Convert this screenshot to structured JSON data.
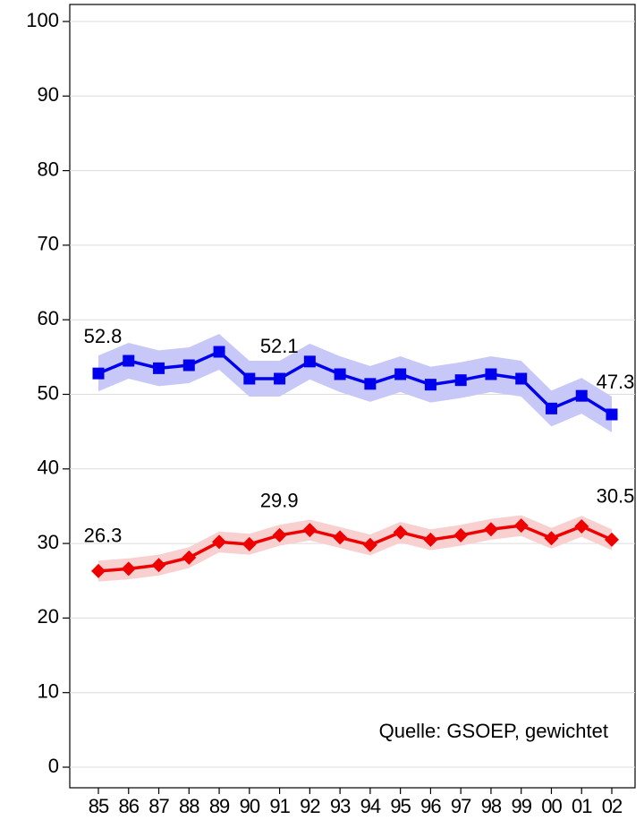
{
  "chart_data": {
    "type": "line",
    "categories": [
      "85",
      "86",
      "87",
      "88",
      "89",
      "90",
      "91",
      "92",
      "93",
      "94",
      "95",
      "96",
      "97",
      "98",
      "99",
      "00",
      "01",
      "02"
    ],
    "ylim": [
      0,
      100
    ],
    "yticks": [
      0,
      10,
      20,
      30,
      40,
      50,
      60,
      70,
      80,
      90,
      100
    ],
    "grid": true,
    "annotation": "Quelle: GSOEP, gewichtet",
    "series": [
      {
        "color": "#0000ee",
        "band_color": "#c8c8f8",
        "marker": "square",
        "values": [
          52.8,
          54.5,
          53.5,
          53.9,
          55.7,
          52.1,
          52.1,
          54.4,
          52.7,
          51.4,
          52.7,
          51.3,
          51.9,
          52.7,
          52.1,
          48.1,
          49.8,
          47.3
        ],
        "ci_lower": [
          50.4,
          52.1,
          51.1,
          51.5,
          53.3,
          49.7,
          49.7,
          52.0,
          50.3,
          49.0,
          50.3,
          48.9,
          49.5,
          50.3,
          49.7,
          45.7,
          47.4,
          44.9
        ],
        "ci_upper": [
          55.2,
          56.9,
          55.9,
          56.3,
          58.1,
          54.5,
          54.5,
          56.8,
          55.1,
          53.8,
          55.1,
          53.7,
          54.3,
          55.1,
          54.5,
          50.5,
          52.2,
          49.7
        ],
        "value_labels": [
          "52.8",
          null,
          null,
          null,
          null,
          "52.1",
          null,
          null,
          null,
          null,
          null,
          null,
          null,
          null,
          null,
          null,
          null,
          "47.3"
        ]
      },
      {
        "color": "#ee0000",
        "band_color": "#f8d0d0",
        "marker": "diamond",
        "values": [
          26.3,
          26.6,
          27.1,
          28.1,
          30.2,
          29.9,
          31.1,
          31.8,
          30.8,
          29.8,
          31.5,
          30.5,
          31.1,
          31.9,
          32.4,
          30.7,
          32.3,
          30.5
        ],
        "ci_lower": [
          24.9,
          25.2,
          25.7,
          26.7,
          28.8,
          28.5,
          29.7,
          30.4,
          29.4,
          28.4,
          30.1,
          29.1,
          29.7,
          30.5,
          31.0,
          29.3,
          30.9,
          29.1
        ],
        "ci_upper": [
          27.7,
          28.0,
          28.5,
          29.5,
          31.6,
          31.3,
          32.5,
          33.2,
          32.2,
          31.2,
          32.9,
          31.9,
          32.5,
          33.3,
          33.8,
          32.1,
          33.7,
          31.9
        ],
        "value_labels": [
          "26.3",
          null,
          null,
          null,
          null,
          "29.9",
          null,
          null,
          null,
          null,
          null,
          null,
          null,
          null,
          null,
          null,
          null,
          "30.5"
        ]
      }
    ]
  }
}
